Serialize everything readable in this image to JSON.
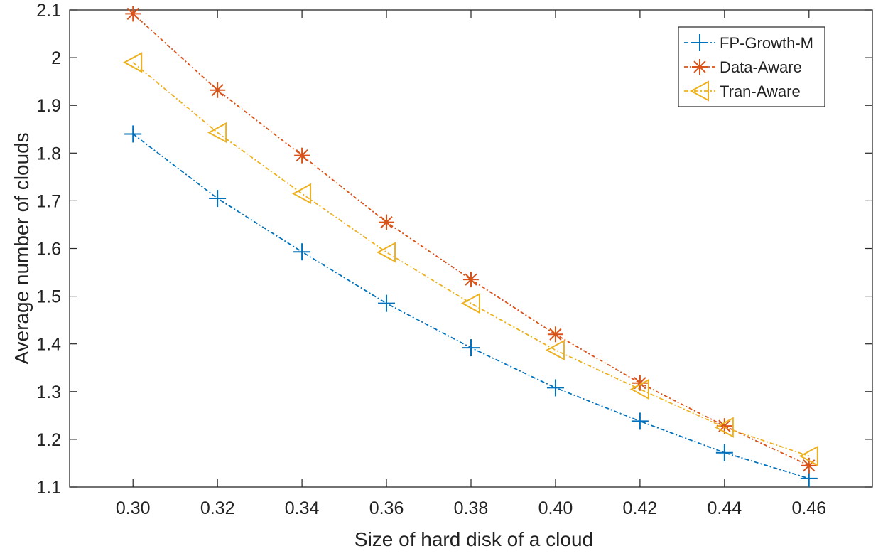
{
  "chart_data": {
    "type": "line",
    "title": "",
    "xlabel": "Size of hard disk of a cloud",
    "ylabel": "Average number of clouds",
    "x": [
      0.3,
      0.32,
      0.34,
      0.36,
      0.38,
      0.4,
      0.42,
      0.44,
      0.46
    ],
    "x_tick_labels": [
      "0.30",
      "0.32",
      "0.34",
      "0.36",
      "0.38",
      "0.40",
      "0.42",
      "0.44",
      "0.46"
    ],
    "xlim": [
      0.285,
      0.475
    ],
    "ylim": [
      1.1,
      2.1
    ],
    "y_ticks": [
      1.1,
      1.2,
      1.3,
      1.4,
      1.5,
      1.6,
      1.7,
      1.8,
      1.9,
      2.0,
      2.1
    ],
    "y_tick_labels": [
      "1.1",
      "1.2",
      "1.3",
      "1.4",
      "1.5",
      "1.6",
      "1.7",
      "1.8",
      "1.9",
      "2",
      "2.1"
    ],
    "grid": false,
    "legend_position": "top-right",
    "series": [
      {
        "name": "FP-Growth-M",
        "marker": "plus",
        "color": "#0072BD",
        "values": [
          1.84,
          1.705,
          1.593,
          1.485,
          1.392,
          1.308,
          1.238,
          1.172,
          1.118
        ]
      },
      {
        "name": "Data-Aware",
        "marker": "asterisk",
        "color": "#D95319",
        "values": [
          2.092,
          1.932,
          1.795,
          1.655,
          1.535,
          1.42,
          1.318,
          1.228,
          1.145
        ]
      },
      {
        "name": "Tran-Aware",
        "marker": "triangle-left",
        "color": "#EDB120",
        "values": [
          1.99,
          1.843,
          1.715,
          1.592,
          1.485,
          1.387,
          1.305,
          1.225,
          1.165
        ]
      }
    ]
  }
}
